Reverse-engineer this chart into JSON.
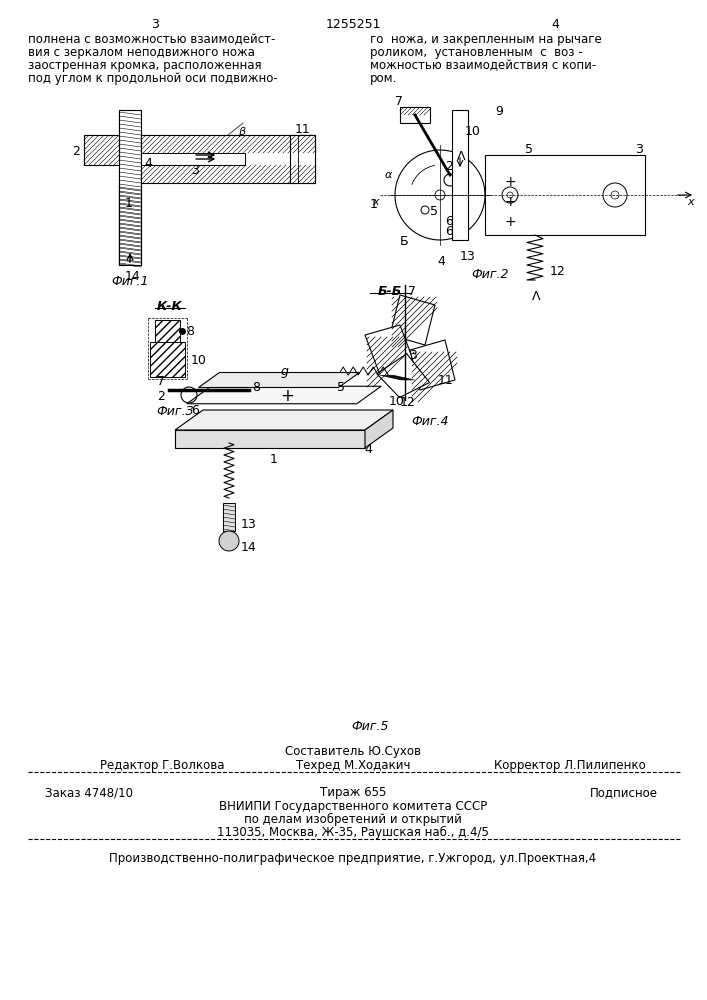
{
  "page_number_left": "3",
  "page_number_center": "1255251",
  "page_number_right": "4",
  "text_left_col": [
    "полнена с возможностью взаимодейст-",
    "вия с зеркалом неподвижного ножа",
    "заостренная кромка, расположенная",
    "под углом к продольной оси подвижно-"
  ],
  "text_right_col": [
    "го  ножа, и закрепленным на рычаге",
    "роликом,  установленным  с  воз -",
    "можностью взаимодействия с копи-",
    "ром."
  ],
  "fig1_label": "Фиг.1",
  "fig2_label": "Фиг.2",
  "fig3_label": "Фиг.З",
  "fig4_label": "Фиг.4",
  "fig5_label": "Фиг.5",
  "section_K_K": "К-К",
  "section_B_B": "Б-Б",
  "footer_caption_label": "Составитель Ю.Сухов",
  "footer_editor": "Редактор Г.Волкова",
  "footer_techred": "Техред М.Ходакич",
  "footer_corrector": "Корректор Л.Пилипенко",
  "footer_order": "Заказ 4748/10",
  "footer_tirazh": "Тираж 655",
  "footer_podpisnoe": "Подписное",
  "footer_vniigi": "ВНИИПИ Государственного комитета СССР",
  "footer_po_delam": "по делам изобретений и открытий",
  "footer_address": "113035, Москва, Ж-35, Раушская наб., д.4/5",
  "footer_production": "Производственно-полиграфическое предприятие, г.Ужгород, ул.Проектная,4",
  "bg_color": "#ffffff",
  "text_color": "#000000"
}
